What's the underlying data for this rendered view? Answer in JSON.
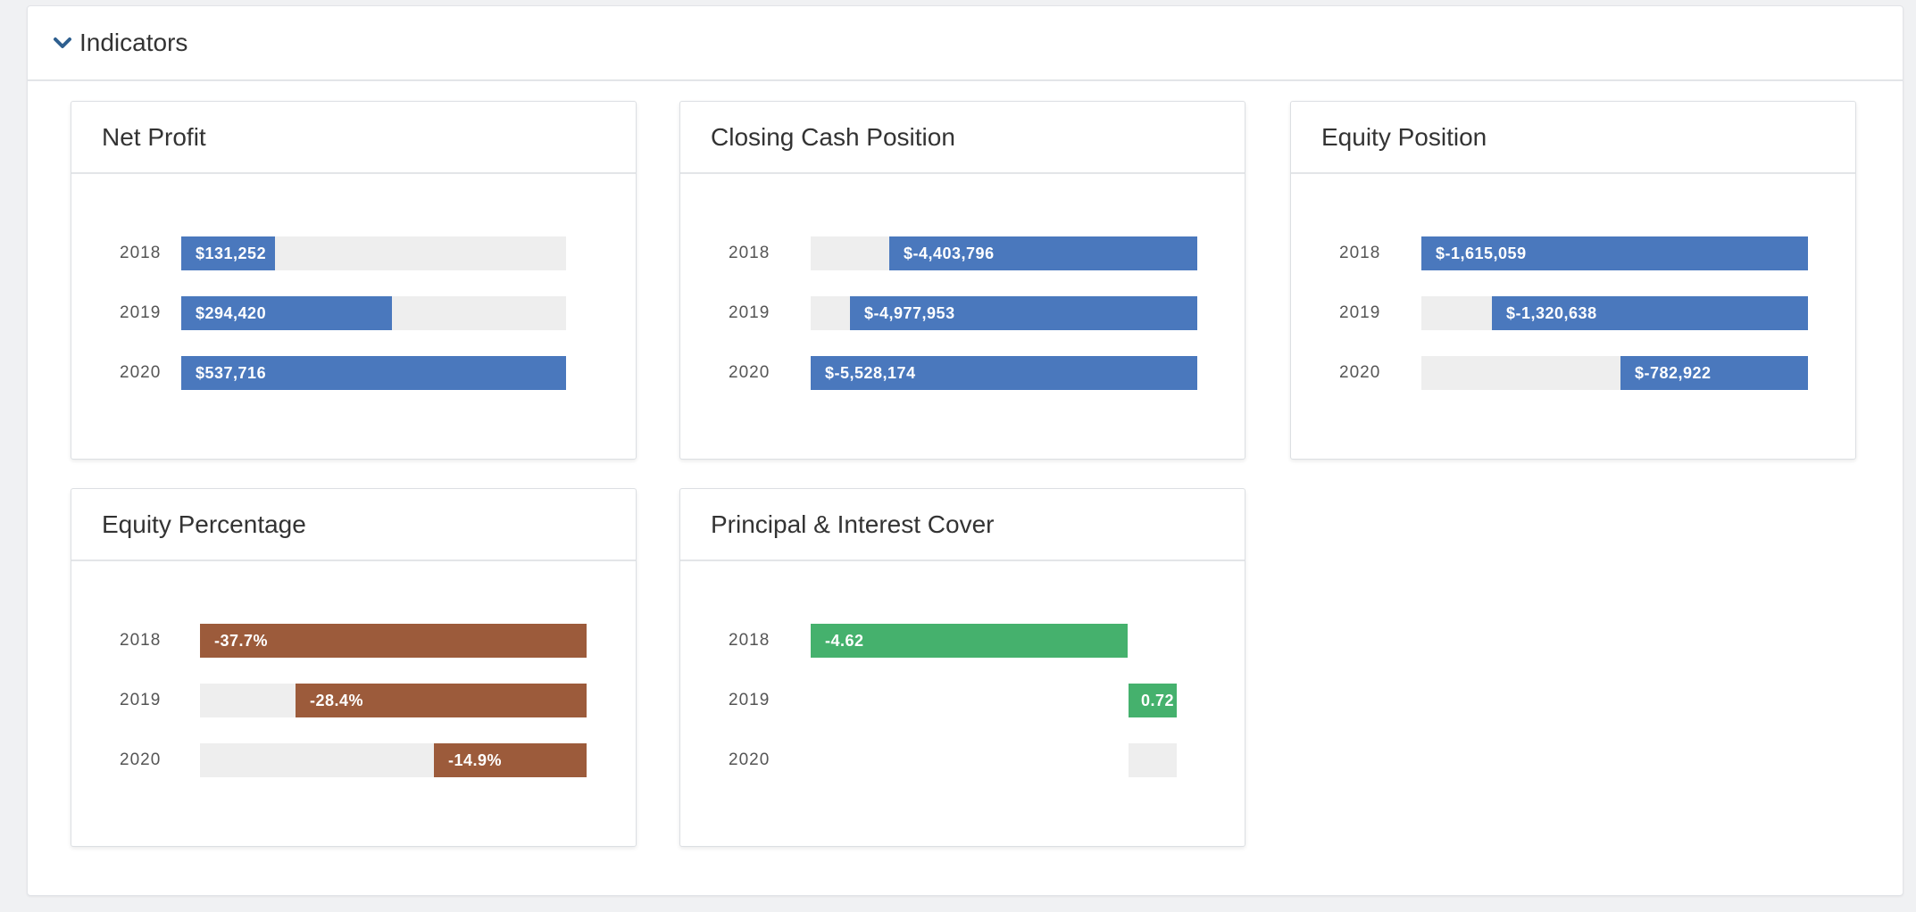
{
  "section": {
    "title": "Indicators"
  },
  "colors": {
    "blue": "#4a78bd",
    "brown": "#9c5b3b",
    "green": "#45b16d",
    "track": "#eeeeee"
  },
  "icons": {
    "toggle": "chevron-down-icon"
  },
  "cards": [
    {
      "title": "Net Profit",
      "color": "#4a78bd",
      "rows": [
        {
          "year": "2018",
          "label": "$131,252",
          "start": 0.0,
          "end": 0.244
        },
        {
          "year": "2019",
          "label": "$294,420",
          "start": 0.0,
          "end": 0.548
        },
        {
          "year": "2020",
          "label": "$537,716",
          "start": 0.0,
          "end": 1.0
        }
      ]
    },
    {
      "title": "Closing Cash Position",
      "color": "#4a78bd",
      "rows": [
        {
          "year": "2018",
          "label": "$-4,403,796",
          "start": 0.203,
          "end": 1.0
        },
        {
          "year": "2019",
          "label": "$-4,977,953",
          "start": 0.101,
          "end": 1.0
        },
        {
          "year": "2020",
          "label": "$-5,528,174",
          "start": 0.0,
          "end": 1.0
        }
      ]
    },
    {
      "title": "Equity Position",
      "color": "#4a78bd",
      "rows": [
        {
          "year": "2018",
          "label": "$-1,615,059",
          "start": 0.0,
          "end": 1.0
        },
        {
          "year": "2019",
          "label": "$-1,320,638",
          "start": 0.182,
          "end": 1.0
        },
        {
          "year": "2020",
          "label": "$-782,922",
          "start": 0.515,
          "end": 1.0
        }
      ]
    },
    {
      "title": "Equity Percentage",
      "color": "#9c5b3b",
      "rows": [
        {
          "year": "2018",
          "label": "-37.7%",
          "start": 0.0,
          "end": 1.0
        },
        {
          "year": "2019",
          "label": "-28.4%",
          "start": 0.247,
          "end": 1.0
        },
        {
          "year": "2020",
          "label": "-14.9%",
          "start": 0.604,
          "end": 1.0
        }
      ]
    },
    {
      "title": "Principal & Interest Cover",
      "color": "#45b16d",
      "rows": [
        {
          "year": "2018",
          "label": "-4.62",
          "start": 0.0,
          "end": 0.865
        },
        {
          "year": "2019",
          "label": "0.72",
          "start": 0.868,
          "end": 1.0
        },
        {
          "year": "2020",
          "label": "",
          "start": 0.868,
          "end": 0.868
        }
      ]
    }
  ]
}
